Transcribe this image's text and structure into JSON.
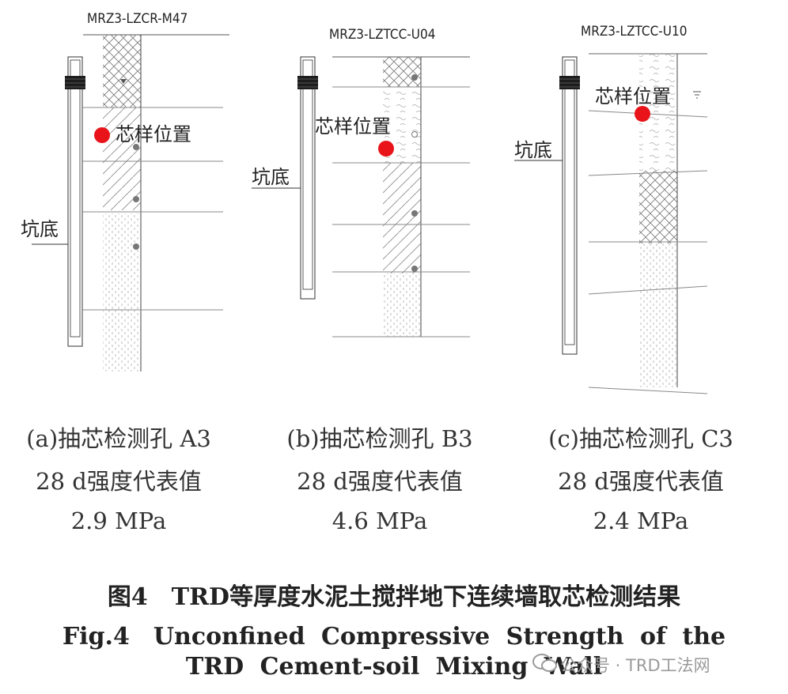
{
  "panels": [
    {
      "id": "a",
      "borehole": "MRZ3-LZCR-M47",
      "core_label": "芯样位置",
      "pit_label": "坑底",
      "caption_line1": "(a)抽芯检测孔 A3",
      "caption_line2": "28 d强度代表值",
      "caption_line3": "2.9 MPa"
    },
    {
      "id": "b",
      "borehole": "MRZ3-LZTCC-U04",
      "core_label": "芯样位置",
      "pit_label": "坑底",
      "caption_line1": "(b)抽芯检测孔 B3",
      "caption_line2": "28 d强度代表值",
      "caption_line3": "4.6 MPa"
    },
    {
      "id": "c",
      "borehole": "MRZ3-LZTCC-U10",
      "core_label": "芯样位置",
      "pit_label": "坑底",
      "caption_line1": "(c)抽芯检测孔 C3",
      "caption_line2": "28 d强度代表值",
      "caption_line3": "2.4 MPa"
    }
  ],
  "figure": {
    "title_cn": "图4　TRD等厚度水泥土搅拌地下连续墙取芯检测结果",
    "title_en_line1": "Fig.4　Unconfined Compressive Strength of the",
    "title_en_line2": "TRD Cement-soil Mixing Wall"
  },
  "watermark": {
    "text": "公众号 · TRD工法网"
  },
  "colors": {
    "core_marker": "#e8141a",
    "lines": "#555555",
    "text": "#222222"
  }
}
